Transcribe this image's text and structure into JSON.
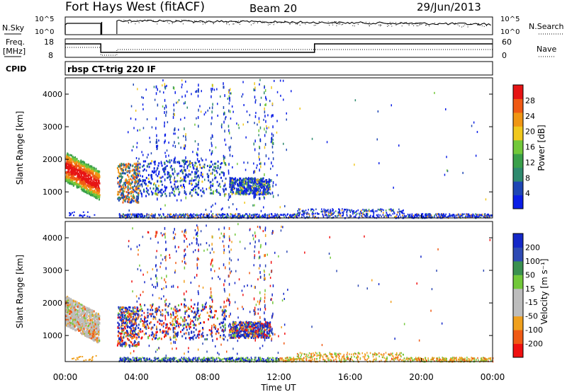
{
  "header": {
    "station": "Fort Hays West (fitACF)",
    "beam": "Beam 20",
    "date": "29/Jun/2013"
  },
  "top_panels": {
    "nsky_label": "N.Sky",
    "nsearch_label": "N.Search",
    "nsky_ticks": [
      "10^5",
      "10^0"
    ],
    "nsearch_ticks": [
      "10^5",
      "10^0"
    ],
    "freq_label_1": "Freq.",
    "freq_label_2": "[MHz]",
    "freq_ticks": [
      "18",
      "8"
    ],
    "nave_label": "Nave",
    "nave_ticks": [
      "60",
      "0"
    ],
    "cpid_label": "CPID",
    "cpid_text": "rbsp CT-trig 220 IF"
  },
  "colors": {
    "power_scale": [
      "#0a1ee6",
      "#1e46b4",
      "#2e8a6e",
      "#3aa04a",
      "#72c83a",
      "#f0c81e",
      "#f09614",
      "#f05a14",
      "#e61414"
    ],
    "velocity_scale": [
      "#f01010",
      "#f05a14",
      "#f0a01e",
      "#bdbdbd",
      "#bdbdbd",
      "#72c83a",
      "#3a9050",
      "#2e4ab4",
      "#1428c8"
    ]
  },
  "chart_data": [
    {
      "type": "heatmap",
      "panel": "power",
      "ylabel": "Slant Range [km]",
      "yticks": [
        "1000",
        "2000",
        "3000",
        "4000"
      ],
      "ylim": [
        200,
        4500
      ],
      "xlim_hours": [
        0,
        24
      ],
      "colorbar_label": "Power [dB]",
      "colorbar_ticks": [
        "4",
        "8",
        "12",
        "16",
        "20",
        "24",
        "28"
      ],
      "colorbar_range": [
        0,
        30
      ]
    },
    {
      "type": "heatmap",
      "panel": "velocity",
      "ylabel": "Slant Range [km]",
      "yticks": [
        "1000",
        "2000",
        "3000",
        "4000"
      ],
      "ylim": [
        200,
        4500
      ],
      "xlim_hours": [
        0,
        24
      ],
      "colorbar_label": "Velocity [m s⁻¹]",
      "colorbar_ticks": [
        "-200",
        "-100",
        "-50",
        "-15",
        "15",
        "50",
        "100",
        "200"
      ]
    }
  ],
  "xaxis": {
    "ticks": [
      "00:00",
      "04:00",
      "08:00",
      "12:00",
      "16:00",
      "20:00",
      "00:00"
    ],
    "label": "Time UT"
  }
}
